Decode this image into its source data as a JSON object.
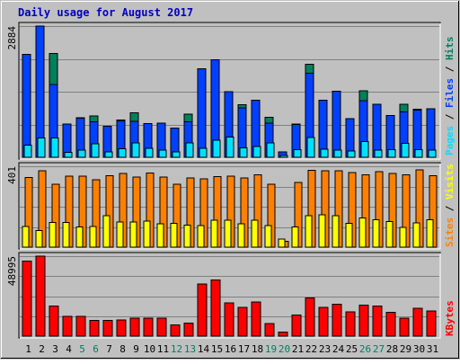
{
  "title": "Daily usage for August 2017",
  "colors": {
    "title": "#0000c0",
    "background": "#c0c0c0",
    "frame": "#ffffff",
    "grid": "#808080",
    "hits": "#00805c",
    "files": "#0040ff",
    "pages": "#00e0ff",
    "visits": "#ff8000",
    "sites": "#ffff00",
    "kbytes": "#ff0000",
    "weekend": "#00805c",
    "weekday": "#000000"
  },
  "labels": {
    "pages": "Pages",
    "files": "Files",
    "hits": "Hits",
    "sites": "Sites",
    "visits": "Visits",
    "kbytes": "KBytes",
    "separator": " / "
  },
  "chart_data": {
    "type": "bar",
    "days": [
      1,
      2,
      3,
      4,
      5,
      6,
      7,
      8,
      9,
      10,
      11,
      12,
      13,
      14,
      15,
      16,
      17,
      18,
      19,
      20,
      21,
      22,
      23,
      24,
      25,
      26,
      27,
      28,
      29,
      30,
      31
    ],
    "weekend_days": [
      5,
      6,
      12,
      13,
      19,
      20,
      26,
      27
    ],
    "panels": [
      {
        "name": "hits-files-pages",
        "ymax_label": "2884",
        "ymax": 2884,
        "series": [
          {
            "name": "Hits",
            "values": [
              2260,
              2884,
              2280,
              730,
              870,
              910,
              680,
              820,
              980,
              740,
              750,
              640,
              950,
              1950,
              2140,
              1440,
              1160,
              1250,
              880,
              120,
              730,
              2040,
              1250,
              1450,
              850,
              1460,
              1170,
              920,
              1170,
              1060,
              1070
            ]
          },
          {
            "name": "Files",
            "values": [
              2260,
              2884,
              1600,
              730,
              860,
              780,
              680,
              800,
              790,
              740,
              750,
              640,
              780,
              1950,
              2140,
              1440,
              1090,
              1250,
              750,
              120,
              720,
              1850,
              1250,
              1450,
              850,
              1240,
              1170,
              920,
              1000,
              1040,
              1070
            ]
          },
          {
            "name": "Pages",
            "values": [
              270,
              420,
              420,
              110,
              160,
              300,
              120,
              190,
              320,
              200,
              160,
              120,
              320,
              200,
              380,
              440,
              210,
              240,
              320,
              40,
              170,
              430,
              180,
              160,
              140,
              350,
              160,
              170,
              310,
              170,
              160
            ]
          }
        ]
      },
      {
        "name": "visits-sites",
        "ymax_label": "401",
        "ymax": 401,
        "series": [
          {
            "name": "Visits",
            "values": [
              345,
              378,
              312,
              353,
              351,
              334,
              354,
              365,
              347,
              368,
              347,
              313,
              344,
              338,
              350,
              352,
              342,
              359,
              313,
              30,
              321,
              381,
              379,
              379,
              369,
              359,
              375,
              365,
              359,
              383,
              355
            ]
          },
          {
            "name": "Sites",
            "values": [
              103,
              82,
              122,
              122,
              100,
              102,
              155,
              124,
              124,
              129,
              115,
              118,
              110,
              108,
              133,
              133,
              115,
              133,
              108,
              41,
              100,
              155,
              160,
              157,
              119,
              145,
              135,
              126,
              99,
              120,
              136
            ]
          }
        ]
      },
      {
        "name": "kbytes",
        "ymax_label": "48995",
        "ymax": 48995,
        "series": [
          {
            "name": "KBytes",
            "values": [
              46000,
              48995,
              18500,
              12000,
              12000,
              9500,
              9500,
              10000,
              11000,
              11000,
              11000,
              7000,
              8000,
              32000,
              34500,
              20500,
              17500,
              21000,
              7800,
              2600,
              12800,
              23500,
              17500,
              19500,
              15000,
              19000,
              18500,
              14500,
              11000,
              17000,
              15500
            ]
          }
        ]
      }
    ]
  }
}
